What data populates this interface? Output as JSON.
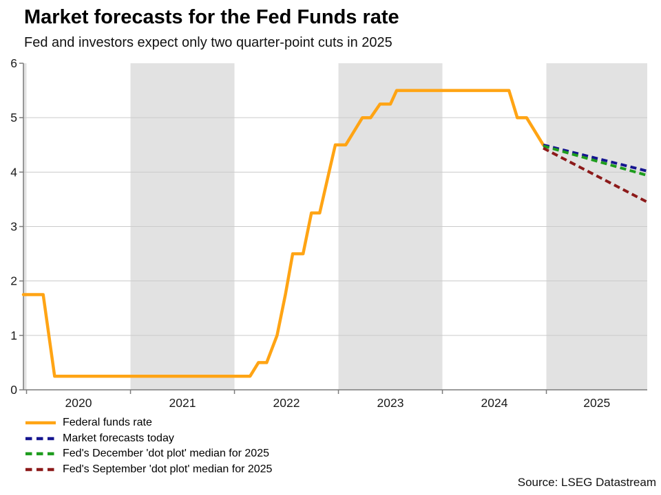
{
  "header": {
    "title": "Market forecasts for the Fed Funds rate",
    "subtitle": "Fed and investors expect only two quarter-point cuts in 2025"
  },
  "source": "Source: LSEG Datastream",
  "chart_data": {
    "type": "line",
    "title": "Market forecasts for the Fed Funds rate",
    "subtitle": "Fed and investors expect only two quarter-point cuts in 2025",
    "xlabel": "",
    "ylabel": "",
    "ylim": [
      0,
      6
    ],
    "yticks": [
      0,
      1,
      2,
      3,
      4,
      5,
      6
    ],
    "x_range": [
      2019.97,
      2025.97
    ],
    "year_ticks": [
      2020,
      2021,
      2022,
      2023,
      2024,
      2025
    ],
    "year_labels": [
      "2020",
      "2021",
      "2022",
      "2023",
      "2024",
      "2025"
    ],
    "shaded_spans": [
      [
        2019.97,
        2020
      ],
      [
        2021,
        2022
      ],
      [
        2023,
        2024
      ],
      [
        2025,
        2025.97
      ]
    ],
    "grid": true,
    "legend_position": "bottom-left",
    "colors": {
      "band": "#E2E2E2",
      "grid": "#CACACA",
      "axis": "#7A7A7A",
      "tick_text": "#1A1A1A"
    },
    "series": [
      {
        "name": "Federal funds rate",
        "color": "#FFA414",
        "style": "solid",
        "points": [
          [
            2019.97,
            1.75
          ],
          [
            2020.16,
            1.75
          ],
          [
            2020.27,
            0.25
          ],
          [
            2022.15,
            0.25
          ],
          [
            2022.23,
            0.5
          ],
          [
            2022.31,
            0.5
          ],
          [
            2022.41,
            1.0
          ],
          [
            2022.49,
            1.75
          ],
          [
            2022.56,
            2.5
          ],
          [
            2022.66,
            2.5
          ],
          [
            2022.74,
            3.25
          ],
          [
            2022.82,
            3.25
          ],
          [
            2022.91,
            4.0
          ],
          [
            2022.97,
            4.5
          ],
          [
            2023.07,
            4.5
          ],
          [
            2023.15,
            4.75
          ],
          [
            2023.23,
            5.0
          ],
          [
            2023.31,
            5.0
          ],
          [
            2023.4,
            5.25
          ],
          [
            2023.5,
            5.25
          ],
          [
            2023.56,
            5.5
          ],
          [
            2024.64,
            5.5
          ],
          [
            2024.72,
            5.0
          ],
          [
            2024.81,
            5.0
          ],
          [
            2024.97,
            4.5
          ]
        ]
      },
      {
        "name": "Market forecasts today",
        "color": "#15158F",
        "style": "dashed",
        "points": [
          [
            2024.97,
            4.5
          ],
          [
            2025.97,
            4.02
          ]
        ]
      },
      {
        "name": "Fed's December 'dot plot' median for 2025",
        "color": "#1E9C1E",
        "style": "dashed",
        "points": [
          [
            2024.97,
            4.48
          ],
          [
            2025.97,
            3.94
          ]
        ]
      },
      {
        "name": "Fed's September 'dot plot' median for 2025",
        "color": "#8C1A1A",
        "style": "dashed",
        "points": [
          [
            2024.97,
            4.44
          ],
          [
            2025.97,
            3.45
          ]
        ]
      }
    ]
  }
}
